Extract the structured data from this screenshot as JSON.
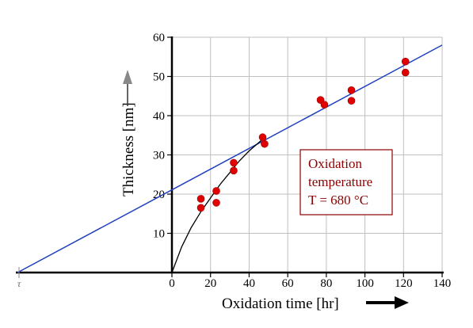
{
  "chart_data": {
    "type": "scatter",
    "xlabel": "Oxidation time [hr]",
    "ylabel": "Thickness [nm]",
    "x_ticks": [
      0,
      20,
      40,
      60,
      80,
      100,
      120,
      140
    ],
    "y_ticks": [
      10,
      20,
      30,
      40,
      50,
      60
    ],
    "xlim": [
      0,
      140
    ],
    "ylim": [
      0,
      60
    ],
    "grid": true,
    "tau_label": "τ",
    "points": [
      {
        "x": 15,
        "y": 18.8
      },
      {
        "x": 15,
        "y": 16.5
      },
      {
        "x": 23,
        "y": 20.8
      },
      {
        "x": 23,
        "y": 17.8
      },
      {
        "x": 32,
        "y": 28.0
      },
      {
        "x": 32,
        "y": 26.0
      },
      {
        "x": 47,
        "y": 34.5
      },
      {
        "x": 48,
        "y": 32.8
      },
      {
        "x": 77,
        "y": 44.0
      },
      {
        "x": 79,
        "y": 42.8
      },
      {
        "x": 93,
        "y": 46.5
      },
      {
        "x": 93,
        "y": 43.8
      },
      {
        "x": 121,
        "y": 53.8
      },
      {
        "x": 121,
        "y": 51.0
      }
    ],
    "linear_fit": {
      "x_start": -80,
      "y_start": 0,
      "x_end": 140,
      "y_end": 58
    },
    "curve": [
      {
        "x": 0,
        "y": 0
      },
      {
        "x": 5,
        "y": 6.5
      },
      {
        "x": 10,
        "y": 11.5
      },
      {
        "x": 15,
        "y": 15.5
      },
      {
        "x": 20,
        "y": 19
      },
      {
        "x": 25,
        "y": 22.5
      },
      {
        "x": 30,
        "y": 25.5
      },
      {
        "x": 35,
        "y": 28.5
      },
      {
        "x": 40,
        "y": 31
      },
      {
        "x": 47,
        "y": 34
      }
    ],
    "annotation": {
      "lines": [
        "Oxidation",
        "temperature",
        "T = 680 °C"
      ]
    },
    "colors": {
      "point_fill": "#e00000",
      "fit_line": "#1f3fbf",
      "curve": "#000000",
      "grid": "#bfbfbf",
      "annotation_text": "#8b0000",
      "annotation_border": "#8b0000"
    }
  }
}
